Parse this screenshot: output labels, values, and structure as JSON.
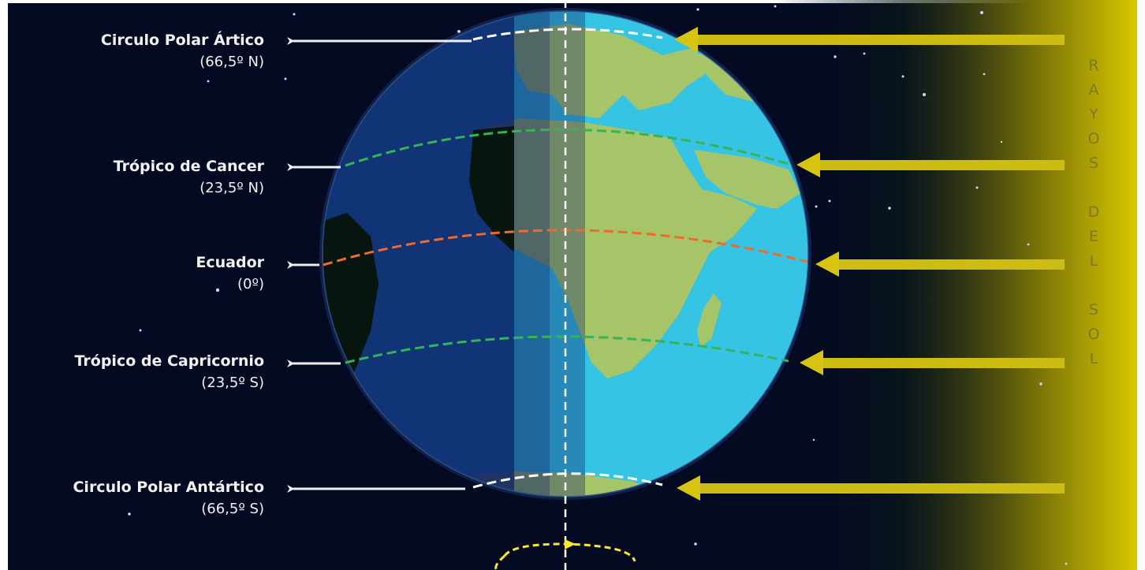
{
  "labels": [
    {
      "id": "arctic",
      "name": "Circulo Polar Ártico",
      "degree": "(66,5º N)"
    },
    {
      "id": "cancer",
      "name": "Trópico de Cancer",
      "degree": "(23,5º N)"
    },
    {
      "id": "equator",
      "name": "Ecuador",
      "degree": "(0º)"
    },
    {
      "id": "capricorn",
      "name": "Trópico de Capricornio",
      "degree": "(23,5º S)"
    },
    {
      "id": "antarctic",
      "name": "Circulo Polar Antártico",
      "degree": "(66,5º S)"
    }
  ],
  "rays_text": "RAYOS DEL SOL",
  "colors": {
    "space": "#040a22",
    "ocean_lit": "#35c4e4",
    "ocean_dark": "#0b1c63",
    "land_lit": "#a6c468",
    "land_dark": "#06150d",
    "sun_yellow": "#d7c400",
    "polar_lines": "#ffffff",
    "tropic_lines": "#35b457",
    "equator_line": "#ef6a2d",
    "axis": "#ffffff",
    "rotation": "#ffe531"
  }
}
